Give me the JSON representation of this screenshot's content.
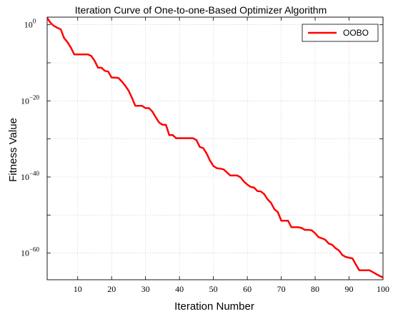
{
  "chart_data": {
    "type": "line",
    "title": "Iteration Curve of One-to-one-Based Optimizer Algorithm",
    "xlabel": "Iteration Number",
    "ylabel": "Fitness Value",
    "xlim": [
      1,
      100
    ],
    "ylim_exponent": [
      -67,
      2
    ],
    "y_scale": "log",
    "x_ticks": [
      10,
      20,
      30,
      40,
      50,
      60,
      70,
      80,
      90,
      100
    ],
    "y_ticks": [
      {
        "base": "10",
        "exp": "0",
        "value_exp": 0
      },
      {
        "base": "10",
        "exp": "−20",
        "value_exp": -20
      },
      {
        "base": "10",
        "exp": "−40",
        "value_exp": -40
      },
      {
        "base": "10",
        "exp": "−60",
        "value_exp": -60
      }
    ],
    "grid": true,
    "legend_position": "top-right",
    "series": [
      {
        "name": "OOBO",
        "color": "#ff0000",
        "x": [
          1,
          2,
          3,
          4,
          5,
          6,
          7,
          8,
          9,
          10,
          11,
          12,
          13,
          14,
          15,
          16,
          17,
          18,
          19,
          20,
          21,
          22,
          23,
          24,
          25,
          26,
          27,
          28,
          29,
          30,
          31,
          32,
          33,
          34,
          35,
          36,
          37,
          38,
          39,
          40,
          41,
          42,
          43,
          44,
          45,
          46,
          47,
          48,
          49,
          50,
          51,
          52,
          53,
          54,
          55,
          56,
          57,
          58,
          59,
          60,
          61,
          62,
          63,
          64,
          65,
          66,
          67,
          68,
          69,
          70,
          71,
          72,
          73,
          74,
          75,
          76,
          77,
          78,
          79,
          80,
          81,
          82,
          83,
          84,
          85,
          86,
          87,
          88,
          89,
          90,
          91,
          92,
          93,
          94,
          95,
          96,
          97,
          98,
          99,
          100
        ],
        "y_exponent": [
          1.8,
          0.5,
          -0.3,
          -0.8,
          -1.2,
          -3.5,
          -4.6,
          -6.0,
          -7.8,
          -7.8,
          -7.8,
          -7.8,
          -7.8,
          -8.2,
          -9.5,
          -11.3,
          -11.3,
          -12.1,
          -12.3,
          -13.9,
          -13.9,
          -14.0,
          -14.9,
          -16.0,
          -17.3,
          -19.2,
          -21.3,
          -21.3,
          -21.3,
          -21.9,
          -21.9,
          -22.8,
          -24.3,
          -25.7,
          -26.3,
          -26.3,
          -29.0,
          -29.0,
          -29.8,
          -29.8,
          -29.8,
          -29.8,
          -29.8,
          -29.8,
          -30.3,
          -32.1,
          -32.4,
          -33.8,
          -35.7,
          -37.1,
          -37.7,
          -37.8,
          -38.0,
          -38.8,
          -39.6,
          -39.6,
          -39.6,
          -40.1,
          -41.2,
          -42.0,
          -42.6,
          -42.8,
          -43.7,
          -43.8,
          -44.5,
          -45.9,
          -46.8,
          -48.5,
          -49.2,
          -51.5,
          -51.5,
          -51.5,
          -53.2,
          -53.2,
          -53.2,
          -53.4,
          -53.9,
          -53.9,
          -54.0,
          -54.8,
          -55.8,
          -56.1,
          -56.5,
          -57.5,
          -57.8,
          -58.7,
          -59.3,
          -60.5,
          -61.0,
          -61.2,
          -61.4,
          -63.0,
          -64.5,
          -64.5,
          -64.5,
          -64.5,
          -65.0,
          -65.5,
          -66.0,
          -66.4
        ]
      }
    ]
  }
}
